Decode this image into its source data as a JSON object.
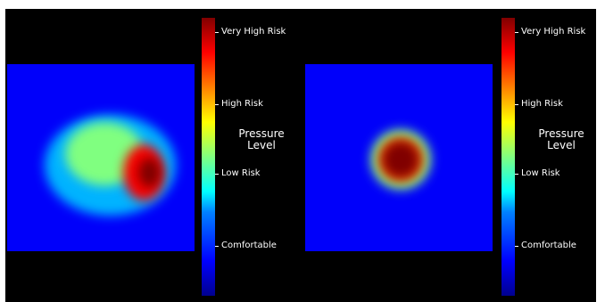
{
  "chart_data": [
    {
      "type": "heatmap",
      "colormap": "jet",
      "colorbar": {
        "title_lines": [
          "Pressure",
          "Level"
        ],
        "ticks": [
          {
            "label": "Comfortable",
            "value": 0.18
          },
          {
            "label": "Low Risk",
            "value": 0.44
          },
          {
            "label": "High Risk",
            "value": 0.69
          },
          {
            "label": "Very High Risk",
            "value": 0.95
          }
        ]
      },
      "pressure_regions": [
        {
          "cx": 0.55,
          "cy": 0.54,
          "rx": 0.35,
          "ry": 0.27,
          "level": 0.3
        },
        {
          "cx": 0.52,
          "cy": 0.48,
          "rx": 0.21,
          "ry": 0.17,
          "level": 0.5
        },
        {
          "cx": 0.73,
          "cy": 0.58,
          "rx": 0.11,
          "ry": 0.15,
          "level": 0.88
        },
        {
          "cx": 0.76,
          "cy": 0.58,
          "rx": 0.06,
          "ry": 0.08,
          "level": 1.0
        }
      ]
    },
    {
      "type": "heatmap",
      "colormap": "jet",
      "colorbar": {
        "title_lines": [
          "Pressure",
          "Level"
        ],
        "ticks": [
          {
            "label": "Comfortable",
            "value": 0.18
          },
          {
            "label": "Low Risk",
            "value": 0.44
          },
          {
            "label": "High Risk",
            "value": 0.69
          },
          {
            "label": "Very High Risk",
            "value": 0.95
          }
        ]
      },
      "pressure_regions": [
        {
          "cx": 0.51,
          "cy": 0.51,
          "rx": 0.16,
          "ry": 0.16,
          "level": 0.5
        },
        {
          "cx": 0.51,
          "cy": 0.51,
          "rx": 0.12,
          "ry": 0.12,
          "level": 0.8
        },
        {
          "cx": 0.51,
          "cy": 0.51,
          "rx": 0.1,
          "ry": 0.1,
          "level": 1.0
        }
      ]
    }
  ]
}
